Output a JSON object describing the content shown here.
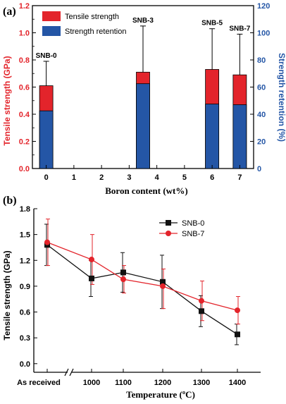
{
  "colors": {
    "red": "#e3242b",
    "blue": "#2456a6",
    "axis_black": "#000000",
    "sq_black": "#111111",
    "red_line": "#e3242b",
    "black_line": "#111111"
  },
  "chart_data": [
    {
      "type": "bar",
      "panel_label": "(a)",
      "xlabel": "Boron content (wt%)",
      "ylabel": "Tensile strength (GPa)",
      "y2label": "Strength retention (%)",
      "xlim": [
        -0.5,
        7.5
      ],
      "ylim": [
        0,
        1.2
      ],
      "y2lim": [
        0,
        120
      ],
      "xticks": [
        "0",
        "1",
        "2",
        "3",
        "4",
        "5",
        "6",
        "7"
      ],
      "yticks": [
        "0.0",
        "0.2",
        "0.4",
        "0.6",
        "0.8",
        "1.0",
        "1.2"
      ],
      "y2ticks": [
        "0",
        "20",
        "40",
        "60",
        "80",
        "100",
        "120"
      ],
      "legend_position": "top-left",
      "series": [
        {
          "name": "Tensile strength",
          "color": "#e3242b",
          "axis": "left"
        },
        {
          "name": "Strength retention",
          "color": "#2456a6",
          "axis": "right"
        }
      ],
      "bars": [
        {
          "label": "SNB-0",
          "x": 0,
          "tensile_strength": 0.61,
          "error_upper": 0.79,
          "strength_retention": 42.5
        },
        {
          "label": "SNB-3",
          "x": 3.5,
          "tensile_strength": 0.71,
          "error_upper": 1.05,
          "strength_retention": 62.5
        },
        {
          "label": "SNB-5",
          "x": 6,
          "tensile_strength": 0.73,
          "error_upper": 1.03,
          "strength_retention": 47.5
        },
        {
          "label": "SNB-7",
          "x": 7,
          "tensile_strength": 0.69,
          "error_upper": 0.99,
          "strength_retention": 47.0
        }
      ]
    },
    {
      "type": "line",
      "panel_label": "(b)",
      "xlabel": "Temperature (ºC)",
      "ylabel": "Tensile strength (GPa)",
      "categories": [
        "As received",
        "1000",
        "1100",
        "1200",
        "1300",
        "1400"
      ],
      "ylim": [
        -0.1,
        1.8
      ],
      "yticks": [
        "0.0",
        "0.3",
        "0.6",
        "0.9",
        "1.2",
        "1.5",
        "1.8"
      ],
      "legend_position": "top-right",
      "axis_break": "between As received and 1000",
      "series": [
        {
          "name": "SNB-0",
          "color": "#111111",
          "marker": "square",
          "values": [
            1.38,
            0.99,
            1.06,
            0.95,
            0.61,
            0.34
          ],
          "err_low": [
            0.24,
            0.21,
            0.23,
            0.31,
            0.18,
            0.12
          ],
          "err_high": [
            0.24,
            0.21,
            0.23,
            0.31,
            0.18,
            0.12
          ]
        },
        {
          "name": "SNB-7",
          "color": "#e3242b",
          "marker": "circle",
          "values": [
            1.41,
            1.21,
            0.98,
            0.9,
            0.73,
            0.62
          ],
          "err_low": [
            0.27,
            0.29,
            0.16,
            0.26,
            0.23,
            0.16
          ],
          "err_high": [
            0.27,
            0.29,
            0.16,
            0.2,
            0.23,
            0.16
          ]
        }
      ]
    }
  ]
}
